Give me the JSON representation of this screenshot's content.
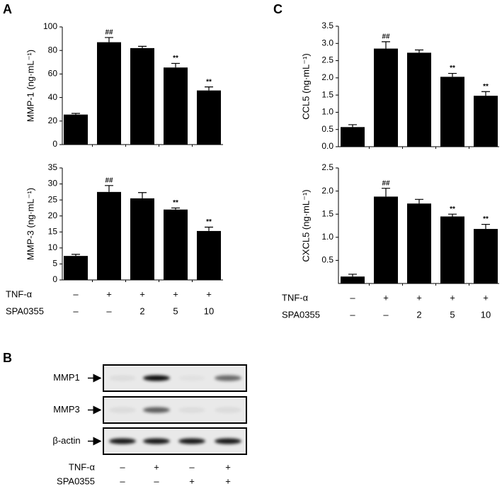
{
  "panel_labels": [
    "A",
    "B",
    "C"
  ],
  "chart_data": [
    {
      "type": "bar",
      "y_label": "MMP-1 (ng·mL⁻¹)",
      "color": "#000000",
      "values": [
        25.5,
        87,
        82,
        65.5,
        46
      ],
      "errors": [
        1,
        4,
        1.5,
        3.5,
        3
      ],
      "annotations": [
        null,
        "##",
        null,
        "**",
        "**"
      ],
      "ylim": [
        0,
        100
      ],
      "yticks": [
        0,
        20,
        40,
        60,
        80,
        100
      ]
    },
    {
      "type": "bar",
      "y_label": "MMP-3 (ng·mL⁻¹)",
      "color": "#000000",
      "values": [
        7.5,
        27.5,
        25.5,
        22,
        15.3
      ],
      "errors": [
        0.5,
        2,
        1.8,
        0.5,
        1.2
      ],
      "annotations": [
        null,
        "##",
        null,
        "**",
        "**"
      ],
      "ylim": [
        0,
        35
      ],
      "yticks": [
        0,
        5,
        10,
        15,
        20,
        25,
        30,
        35
      ]
    },
    {
      "type": "bar",
      "y_label": "CCL5 (ng·mL⁻¹)",
      "color": "#000000",
      "values": [
        0.57,
        2.85,
        2.73,
        2.03,
        1.48
      ],
      "errors": [
        0.07,
        0.2,
        0.08,
        0.1,
        0.12
      ],
      "annotations": [
        null,
        "##",
        null,
        "**",
        "**"
      ],
      "ylim": [
        0,
        3.5
      ],
      "yticks": [
        {
          "value": 0,
          "label": "0.0"
        },
        0.5,
        {
          "value": 1,
          "label": "1.0"
        },
        1.5,
        {
          "value": 2,
          "label": "2.0"
        },
        2.5,
        {
          "value": 3,
          "label": "3.0"
        },
        3.5
      ]
    },
    {
      "type": "bar",
      "y_label": "CXCL5 (ng·mL⁻¹)",
      "color": "#000000",
      "values": [
        0.15,
        1.88,
        1.73,
        1.45,
        1.18
      ],
      "errors": [
        0.05,
        0.18,
        0.09,
        0.05,
        0.1
      ],
      "annotations": [
        null,
        "##",
        null,
        "**",
        "**"
      ],
      "ylim": [
        0,
        2.5
      ],
      "yticks": [
        0.5,
        {
          "value": 1,
          "label": "1.0"
        },
        1.5,
        {
          "value": 2,
          "label": "2.0"
        },
        2.5
      ]
    }
  ],
  "treatment_tables": [
    {
      "rows": [
        {
          "label": "TNF-α",
          "cells": [
            "–",
            "+",
            "+",
            "+",
            "+"
          ]
        },
        {
          "label": "SPA0355",
          "cells": [
            "–",
            "–",
            "2",
            "5",
            "10"
          ]
        }
      ]
    },
    {
      "rows": [
        {
          "label": "TNF-α",
          "cells": [
            "–",
            "+",
            "+",
            "+",
            "+"
          ]
        },
        {
          "label": "SPA0355",
          "cells": [
            "–",
            "–",
            "2",
            "5",
            "10"
          ]
        }
      ]
    }
  ],
  "blot": {
    "rows": [
      "MMP1",
      "MMP3",
      "β-actin"
    ],
    "treatments": {
      "rows": [
        {
          "label": "TNF-α",
          "cells": [
            "–",
            "+",
            "–",
            "+"
          ]
        },
        {
          "label": "SPA0355",
          "cells": [
            "–",
            "–",
            "+",
            "+"
          ]
        }
      ]
    }
  }
}
